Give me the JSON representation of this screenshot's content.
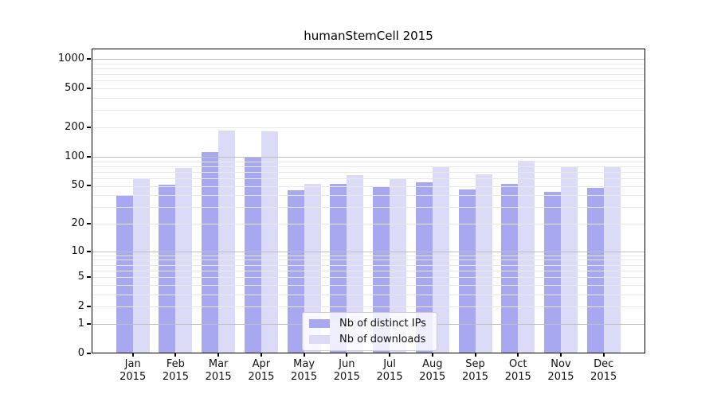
{
  "title": "humanStemCell 2015",
  "chart_data": {
    "type": "bar",
    "title": "humanStemCell 2015",
    "categories": [
      "Jan",
      "Feb",
      "Mar",
      "Apr",
      "May",
      "Jun",
      "Jul",
      "Aug",
      "Sep",
      "Oct",
      "Nov",
      "Dec"
    ],
    "year": "2015",
    "series": [
      {
        "name": "Nb of distinct IPs",
        "color": "#a8a8f0",
        "values": [
          39,
          51,
          112,
          97,
          45,
          52,
          49,
          54,
          46,
          52,
          43,
          48
        ]
      },
      {
        "name": "Nb of downloads",
        "color": "#dbdbf8",
        "values": [
          60,
          77,
          186,
          182,
          52,
          64,
          59,
          80,
          66,
          90,
          80,
          80
        ]
      }
    ],
    "xlabel": "",
    "ylabel": "",
    "yscale": "log1p",
    "yticks": [
      0,
      1,
      2,
      5,
      10,
      20,
      50,
      100,
      200,
      500,
      1000
    ],
    "ylim": [
      0,
      1260
    ],
    "grid": true,
    "major_grid_at": [
      1,
      10,
      100,
      1000
    ],
    "legend_position": "lower-center"
  }
}
